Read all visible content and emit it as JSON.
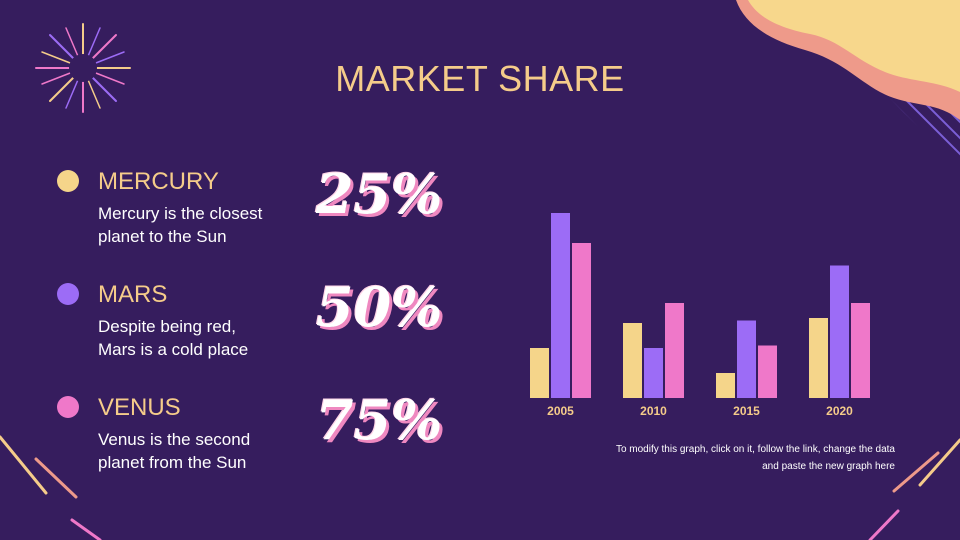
{
  "title": "MARKET SHARE",
  "items": [
    {
      "name": "MERCURY",
      "description_lines": [
        "Mercury is the closest",
        "planet to the Sun"
      ],
      "percent": "25%",
      "color": "#f5d58a"
    },
    {
      "name": "MARS",
      "description_lines": [
        "Despite being red,",
        "Mars is a cold place"
      ],
      "percent": "50%",
      "color": "#9c6cf6"
    },
    {
      "name": "VENUS",
      "description_lines": [
        "Venus is the second",
        "planet from the Sun"
      ],
      "percent": "75%",
      "color": "#ef78c9"
    }
  ],
  "chart_data": {
    "type": "bar",
    "categories": [
      "2005",
      "2010",
      "2015",
      "2020"
    ],
    "series": [
      {
        "values": [
          2,
          3,
          1,
          3.2
        ],
        "color": "#f5d58a"
      },
      {
        "values": [
          7.4,
          2,
          3.1,
          5.3
        ],
        "color": "#9c6cf6"
      },
      {
        "values": [
          6.2,
          3.8,
          2.1,
          3.8
        ],
        "color": "#ef78c9"
      }
    ],
    "ylim": [
      0,
      8
    ],
    "grid": false,
    "legend": "none"
  },
  "note_lines": [
    "To modify this graph, click on it, follow the link, change the data",
    "and paste the new graph here"
  ],
  "colors": {
    "background": "#361d5e",
    "title": "#f5cc8a",
    "wave_outer": "#ee9a8a",
    "wave_inner": "#f7d78c",
    "hatch": "#7b5fd6"
  },
  "decorations": {
    "burst_icon": "firework-burst-icon",
    "wave_icon": "corner-wave-icon"
  }
}
